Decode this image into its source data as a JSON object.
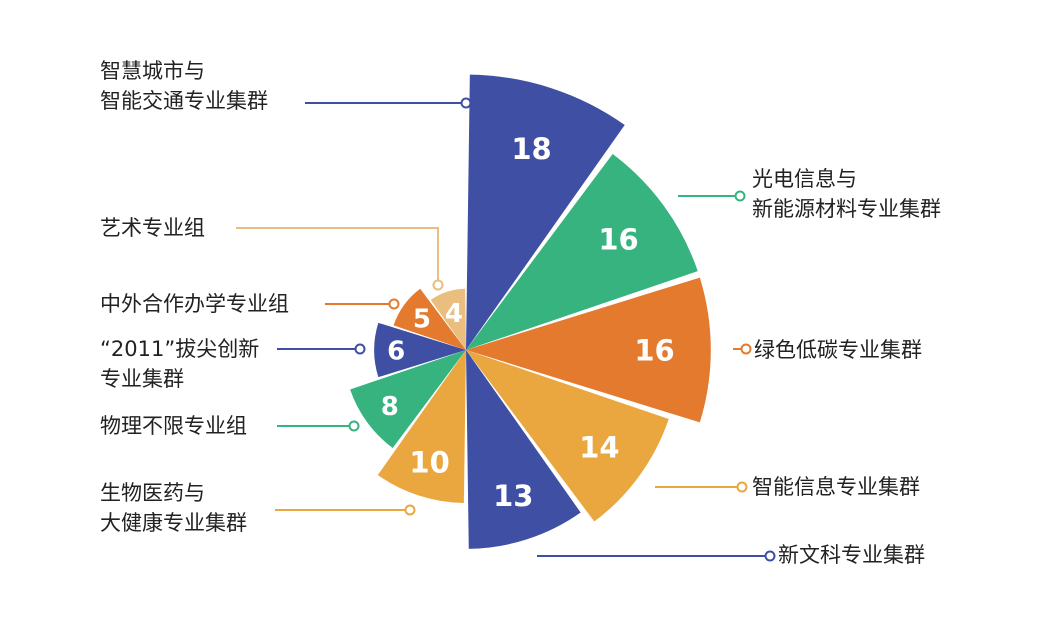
{
  "chart_data": {
    "type": "pie",
    "variant": "nightingale-rose",
    "colors": {
      "blue": "#3F4FA3",
      "green": "#36B37E",
      "orange": "#E47A2E",
      "yellow": "#EBA73F",
      "tan": "#E9BE7F"
    },
    "slices": [
      {
        "value": 18,
        "label_lines": [
          "智慧城市与",
          "智能交通专业集群"
        ],
        "color": "#3F4FA3"
      },
      {
        "value": 16,
        "label_lines": [
          "光电信息与",
          "新能源材料专业集群"
        ],
        "color": "#36B37E"
      },
      {
        "value": 16,
        "label_lines": [
          "绿色低碳专业集群"
        ],
        "color": "#E47A2E"
      },
      {
        "value": 14,
        "label_lines": [
          "智能信息专业集群"
        ],
        "color": "#EBA73F"
      },
      {
        "value": 13,
        "label_lines": [
          "新文科专业集群"
        ],
        "color": "#3F4FA3"
      },
      {
        "value": 10,
        "label_lines": [
          "生物医药与",
          "大健康专业集群"
        ],
        "color": "#EBA73F"
      },
      {
        "value": 8,
        "label_lines": [
          "物理不限专业组"
        ],
        "color": "#36B37E"
      },
      {
        "value": 6,
        "label_lines": [
          "“2011”拔尖创新",
          "专业集群"
        ],
        "color": "#3F4FA3"
      },
      {
        "value": 5,
        "label_lines": [
          "中外合作办学专业组"
        ],
        "color": "#E47A2E"
      },
      {
        "value": 4,
        "label_lines": [
          "艺术专业组"
        ],
        "color": "#E9BE7F"
      }
    ]
  }
}
